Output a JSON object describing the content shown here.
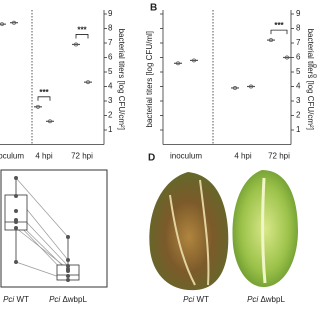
{
  "chart_data": [
    {
      "type": "dot",
      "categories": [
        "inoculum",
        "4 hpi",
        "72 hpi"
      ],
      "series": [
        {
          "color": "#555555",
          "values": [
            8.3,
            2.6,
            6.9
          ]
        },
        {
          "color": "#555555",
          "values": [
            8.4,
            1.6,
            4.3
          ]
        }
      ],
      "ylim": [
        0,
        9
      ],
      "yticks": [
        1,
        2,
        3,
        4,
        5,
        6,
        7,
        8,
        9
      ],
      "y_label": "bacterial titers [log CFU/cm²]",
      "annotations": [
        {
          "category": 1,
          "text": "***"
        },
        {
          "category": 2,
          "text": "***"
        }
      ]
    },
    {
      "type": "dot",
      "label": "B",
      "categories": [
        "inoculum",
        "4 hpi",
        "72 hpi"
      ],
      "series": [
        {
          "color": "#555555",
          "values": [
            5.6,
            3.9,
            7.2
          ]
        },
        {
          "color": "#555555",
          "values": [
            5.8,
            4.0,
            6.0
          ]
        }
      ],
      "ylim": [
        0,
        9
      ],
      "yticks": [
        1,
        2,
        3,
        4,
        5,
        6,
        7,
        8,
        9
      ],
      "y_label": "bacterial titers [log CFU/ml]",
      "y2_label": "bacterial titers [log CFU/cm²]",
      "annotations": [
        {
          "category": 2,
          "text": "***"
        }
      ]
    },
    {
      "type": "box",
      "categories": [
        {
          "strain": "Pci",
          "variant": "WT"
        },
        {
          "strain": "Pci",
          "variant": "ΔwbpL"
        }
      ],
      "ylim": [
        -1,
        10
      ],
      "boxes": [
        {
          "min": 1.2,
          "q1": 4.4,
          "median": 5.2,
          "q3": 7.9,
          "max": 9.6
        },
        {
          "min": -0.8,
          "q1": -0.6,
          "median": -0.1,
          "q3": 0.9,
          "max": 3.7
        }
      ],
      "pairs": [
        [
          9.6,
          3.7
        ],
        [
          7.8,
          1.4
        ],
        [
          6.3,
          0.8
        ],
        [
          5.4,
          0.3
        ],
        [
          5.2,
          -0.2
        ],
        [
          4.6,
          0.5
        ],
        [
          1.2,
          -0.6
        ]
      ]
    }
  ],
  "photo_panel": {
    "label": "D",
    "captions": [
      {
        "strain": "Pci",
        "variant": "WT"
      },
      {
        "strain": "Pci",
        "variant": "ΔwbpL"
      }
    ]
  }
}
